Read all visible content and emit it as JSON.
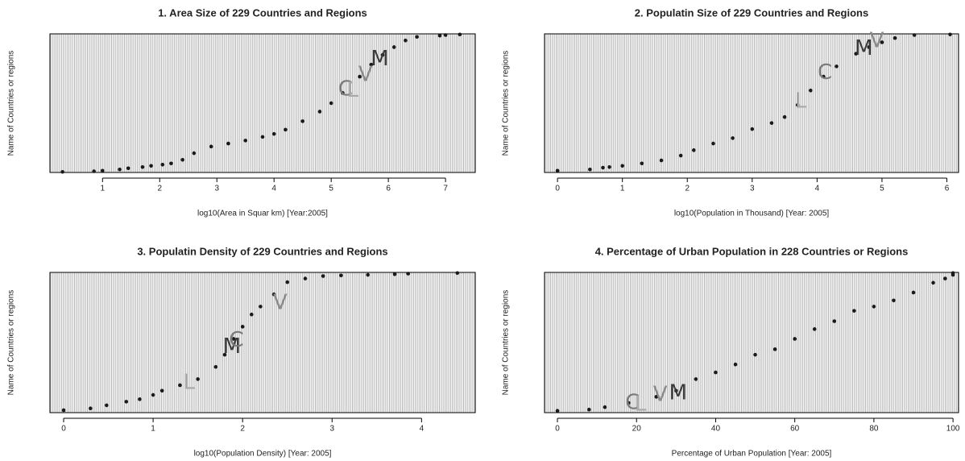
{
  "chart_data": [
    {
      "type": "scatter",
      "title": "1. Area Size of 229 Countries and Regions",
      "x_label": "log10(Area in Squar km) [Year:2005]",
      "y_label": "Name of Countries or regions",
      "color": "#1a1a1a",
      "x": [
        0.3,
        0.85,
        1.0,
        1.3,
        1.45,
        1.7,
        1.85,
        2.05,
        2.2,
        2.4,
        2.6,
        2.9,
        3.2,
        3.5,
        3.8,
        4.0,
        4.2,
        4.5,
        4.8,
        5.0,
        5.2,
        5.5,
        5.7,
        5.9,
        6.1,
        6.3,
        6.5,
        6.9,
        7.0,
        7.25
      ],
      "y": [
        1,
        2,
        3,
        5,
        7,
        9,
        11,
        13,
        15,
        21,
        32,
        43,
        48,
        53,
        59,
        64,
        71,
        85,
        101,
        115,
        132,
        159,
        179,
        195,
        208,
        219,
        225,
        227,
        228,
        229
      ],
      "xlim": [
        0.08,
        7.52
      ],
      "xticks": [
        1,
        2,
        3,
        4,
        5,
        6,
        7
      ],
      "ylim": [
        0,
        230
      ],
      "annotations": [
        {
          "text": "C",
          "x": 5.25,
          "y": 138,
          "color": "#7a7a7a"
        },
        {
          "text": "L",
          "x": 5.38,
          "y": 136,
          "color": "#a8a8a8"
        },
        {
          "text": "V",
          "x": 5.6,
          "y": 162,
          "color": "#8a8a8a"
        },
        {
          "text": "M",
          "x": 5.85,
          "y": 188,
          "color": "#3a3a3a"
        }
      ]
    },
    {
      "type": "scatter",
      "title": "2. Populatin Size of 229 Countries and Regions",
      "x_label": "log10(Population in Thousand) [Year: 2005]",
      "y_label": "Name of Countries or regions",
      "color": "#1a1a1a",
      "x": [
        0,
        0.5,
        0.7,
        0.8,
        1.0,
        1.3,
        1.6,
        1.9,
        2.1,
        2.4,
        2.7,
        3.0,
        3.3,
        3.5,
        3.7,
        3.9,
        4.1,
        4.3,
        4.6,
        4.8,
        5.0,
        5.2,
        5.5,
        6.05
      ],
      "y": [
        3,
        5,
        8,
        9,
        11,
        15,
        20,
        28,
        37,
        48,
        57,
        72,
        82,
        92,
        112,
        136,
        159,
        176,
        197,
        208,
        216,
        223,
        228,
        229
      ],
      "xlim": [
        -0.2,
        6.18
      ],
      "xticks": [
        0,
        1,
        2,
        3,
        4,
        5,
        6
      ],
      "ylim": [
        0,
        230
      ],
      "annotations": [
        {
          "text": "L",
          "x": 3.75,
          "y": 118,
          "color": "#a8a8a8"
        },
        {
          "text": "C",
          "x": 4.12,
          "y": 165,
          "color": "#7a7a7a"
        },
        {
          "text": "M",
          "x": 4.72,
          "y": 205,
          "color": "#3a3a3a"
        },
        {
          "text": "V",
          "x": 4.92,
          "y": 218,
          "color": "#8a8a8a"
        }
      ]
    },
    {
      "type": "scatter",
      "title": "3. Populatin Density of 229 Countries and Regions",
      "x_label": "log10(Population Density) [Year: 2005]",
      "y_label": "Name of Countries or regions",
      "color": "#1a1a1a",
      "x": [
        0,
        0.3,
        0.48,
        0.7,
        0.85,
        1.0,
        1.1,
        1.3,
        1.5,
        1.7,
        1.8,
        1.9,
        2.0,
        2.1,
        2.2,
        2.35,
        2.5,
        2.7,
        2.9,
        3.1,
        3.4,
        3.7,
        3.85,
        4.4
      ],
      "y": [
        4,
        7,
        12,
        18,
        22,
        29,
        36,
        45,
        55,
        75,
        95,
        121,
        141,
        161,
        174,
        194,
        214,
        220,
        224,
        225,
        226,
        227,
        228,
        229
      ],
      "xlim": [
        -0.153,
        4.6
      ],
      "xticks": [
        0,
        1,
        2,
        3,
        4
      ],
      "ylim": [
        0,
        230
      ],
      "annotations": [
        {
          "text": "L",
          "x": 1.4,
          "y": 49,
          "color": "#a8a8a8"
        },
        {
          "text": "M",
          "x": 1.88,
          "y": 108,
          "color": "#3a3a3a"
        },
        {
          "text": "C",
          "x": 1.93,
          "y": 118,
          "color": "#7a7a7a"
        },
        {
          "text": "V",
          "x": 2.42,
          "y": 180,
          "color": "#8a8a8a"
        }
      ]
    },
    {
      "type": "scatter",
      "title": "4. Percentage of Urban Population in 228 Countries or Regions",
      "x_label": "Percentage of Urban Population [Year: 2005]",
      "y_label": "Name of Countries or regions",
      "color": "#1a1a1a",
      "x": [
        0,
        8,
        12,
        18,
        25,
        30,
        35,
        40,
        45,
        50,
        55,
        60,
        65,
        70,
        75,
        80,
        85,
        90,
        95,
        98,
        100,
        100
      ],
      "y": [
        3,
        5,
        9,
        16,
        26,
        36,
        55,
        66,
        79,
        95,
        104,
        121,
        137,
        150,
        167,
        174,
        184,
        197,
        213,
        220,
        226,
        229
      ],
      "xlim": [
        -3.26,
        101.4
      ],
      "xticks": [
        0,
        20,
        40,
        60,
        80,
        100
      ],
      "ylim": [
        0,
        230
      ],
      "annotations": [
        {
          "text": "C",
          "x": 19,
          "y": 16,
          "color": "#7a7a7a"
        },
        {
          "text": "L",
          "x": 21,
          "y": 13,
          "color": "#a8a8a8"
        },
        {
          "text": "V",
          "x": 26,
          "y": 29,
          "color": "#8a8a8a"
        },
        {
          "text": "M",
          "x": 30.5,
          "y": 32,
          "color": "#3a3a3a"
        }
      ]
    }
  ]
}
